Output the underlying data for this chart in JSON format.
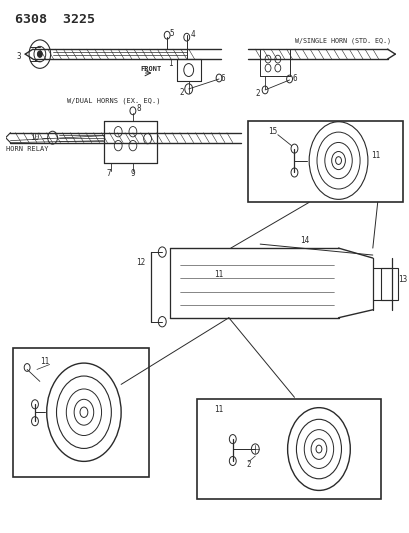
{
  "title": "6308  3225",
  "background_color": "#ffffff",
  "line_color": "#2a2a2a",
  "text_color": "#2a2a2a",
  "title_fontsize": 10,
  "figsize": [
    4.1,
    5.33
  ],
  "dpi": 100,
  "labels": {
    "front": "FRONT",
    "w_dual": "W/DUAL HORNS (EX. EQ.)",
    "w_single": "W/SINGLE HORN (STD. EQ.)",
    "horn_relay": "HORN RELAY"
  }
}
